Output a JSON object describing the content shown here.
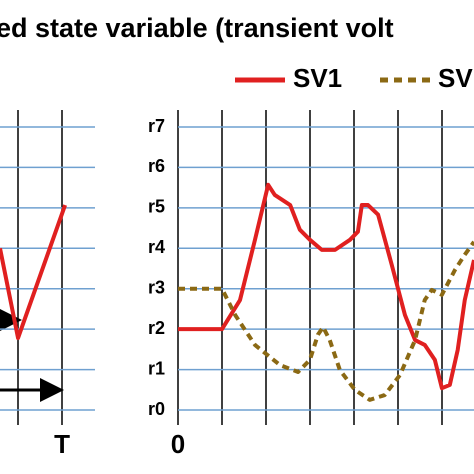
{
  "chart_data": [
    {
      "type": "line",
      "title": "ed state variable (transient volt",
      "xticks": [
        {
          "value": 1,
          "label": "T"
        }
      ],
      "xlim": [
        -0.41,
        1.75
      ],
      "ylim": [
        0,
        7
      ],
      "x": [
        -0.41,
        0,
        1.07
      ],
      "series": [
        {
          "color": "#e02020",
          "values": [
            4.0,
            1.78,
            5.07
          ]
        }
      ]
    },
    {
      "type": "line",
      "xlim": [
        0,
        6.73
      ],
      "ylim": [
        0,
        7
      ],
      "xticks": [
        0
      ],
      "grid": true,
      "yticks": [
        {
          "value": 0,
          "label": "r0"
        },
        {
          "value": 1,
          "label": "r1"
        },
        {
          "value": 2,
          "label": "r2"
        },
        {
          "value": 3,
          "label": "r3"
        },
        {
          "value": 4,
          "label": "r4"
        },
        {
          "value": 5,
          "label": "r5"
        },
        {
          "value": 6,
          "label": "r6"
        },
        {
          "value": 7,
          "label": "r7"
        }
      ],
      "series": [
        {
          "name": "SV1",
          "color": "#e02020",
          "dash": false,
          "x": [
            0,
            1,
            1.41,
            1.75,
            2.05,
            2.2,
            2.55,
            2.77,
            3.0,
            3.27,
            3.57,
            3.91,
            4.09,
            4.18,
            4.32,
            4.55,
            4.86,
            5.16,
            5.39,
            5.61,
            5.84,
            6.0,
            6.18,
            6.36,
            6.52,
            6.73
          ],
          "values": [
            2.0,
            2.0,
            2.72,
            4.21,
            5.57,
            5.32,
            5.07,
            4.46,
            4.21,
            3.96,
            3.96,
            4.21,
            4.41,
            5.07,
            5.07,
            4.83,
            3.59,
            2.35,
            1.73,
            1.61,
            1.24,
            0.54,
            0.62,
            1.49,
            2.72,
            3.71
          ]
        },
        {
          "name": "SV",
          "color": "#8b6914",
          "dash": true,
          "x": [
            0,
            1,
            1.3,
            1.75,
            2.32,
            2.73,
            3.0,
            3.18,
            3.3,
            3.45,
            3.68,
            4.02,
            4.36,
            4.7,
            5.05,
            5.39,
            5.61,
            5.77,
            6.0,
            6.3,
            6.52,
            6.73
          ],
          "values": [
            3.0,
            3.0,
            2.35,
            1.61,
            1.11,
            0.94,
            1.24,
            1.86,
            2.05,
            1.73,
            0.99,
            0.5,
            0.25,
            0.37,
            0.87,
            1.73,
            2.72,
            2.97,
            2.85,
            3.47,
            3.84,
            4.16
          ]
        }
      ]
    }
  ]
}
